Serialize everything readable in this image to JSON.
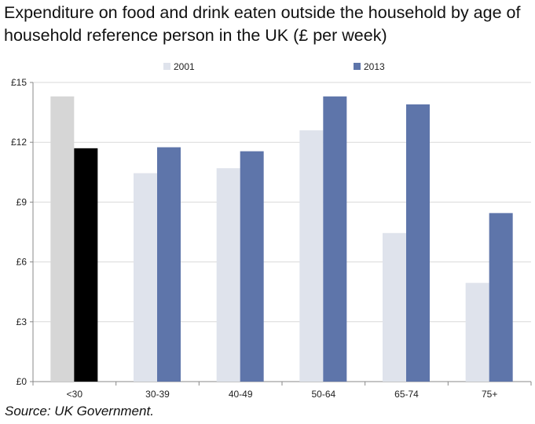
{
  "title_lines": [
    "Expenditure on food and drink eaten outside the household by age of",
    "household reference person in the UK (£ per week)"
  ],
  "source": "Source:  UK Government.",
  "colors": {
    "series_2001": "#dfe3ec",
    "series_2013": "#5e75aa",
    "highlight_2001": "#d6d6d6",
    "highlight_2013": "#000000",
    "axis": "#888888",
    "grid": "#d9d9d9"
  },
  "chart_data": {
    "type": "bar",
    "title": "Expenditure on food and drink eaten outside the household by age of household reference person in the UK (£ per week)",
    "xlabel": "",
    "ylabel": "",
    "ylim": [
      0,
      15
    ],
    "yticks": [
      0,
      3,
      6,
      9,
      12,
      15
    ],
    "ytick_labels": [
      "£0",
      "£3",
      "£6",
      "£9",
      "£12",
      "£15"
    ],
    "grid": true,
    "legend_position": "top-center",
    "categories": [
      "<30",
      "30-39",
      "40-49",
      "50-64",
      "65-74",
      "75+"
    ],
    "highlighted_category": "<30",
    "series": [
      {
        "name": "2001",
        "values": [
          14.3,
          10.45,
          10.7,
          12.6,
          7.45,
          4.95
        ]
      },
      {
        "name": "2013",
        "values": [
          11.7,
          11.75,
          11.55,
          14.3,
          13.9,
          8.45
        ]
      }
    ]
  }
}
